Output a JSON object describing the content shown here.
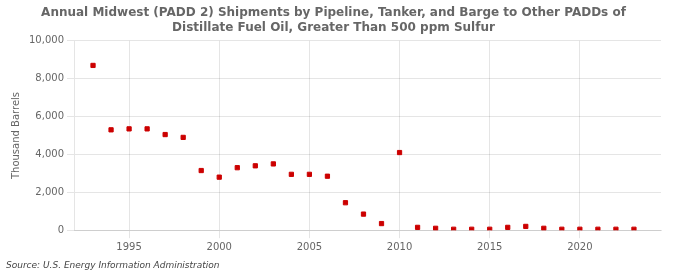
{
  "chart_data": {
    "type": "scatter",
    "title": "Annual Midwest (PADD 2) Shipments by Pipeline, Tanker, and Barge to Other PADDs of\nDistillate Fuel Oil, Greater Than 500 ppm Sulfur",
    "ylabel": "Thousand Barrels",
    "source": "Source: U.S. Energy Information Administration",
    "x": [
      1993,
      1994,
      1995,
      1996,
      1997,
      1998,
      1999,
      2000,
      2001,
      2002,
      2003,
      2004,
      2005,
      2006,
      2007,
      2008,
      2009,
      2010,
      2011,
      2012,
      2013,
      2014,
      2015,
      2016,
      2017,
      2018,
      2019,
      2020,
      2021,
      2022,
      2023
    ],
    "values": [
      8700,
      5300,
      5350,
      5350,
      5050,
      4900,
      3150,
      2800,
      3300,
      3400,
      3500,
      2950,
      2950,
      2850,
      1450,
      850,
      350,
      4100,
      150,
      100,
      50,
      50,
      50,
      150,
      200,
      100,
      50,
      50,
      50,
      50,
      50
    ],
    "color": "#cc0000",
    "marker": "square",
    "xlim": [
      1992.0,
      2024.5
    ],
    "xticks": [
      1995,
      2000,
      2005,
      2010,
      2015,
      2020
    ],
    "ylim": [
      0,
      10000
    ],
    "yticks": [
      0,
      {
        "value": 2000,
        "label": "2,000"
      },
      {
        "value": 4000,
        "label": "4,000"
      },
      {
        "value": 6000,
        "label": "6,000"
      },
      {
        "value": 8000,
        "label": "8,000"
      },
      {
        "value": 10000,
        "label": "10,000"
      }
    ],
    "grid": true
  }
}
